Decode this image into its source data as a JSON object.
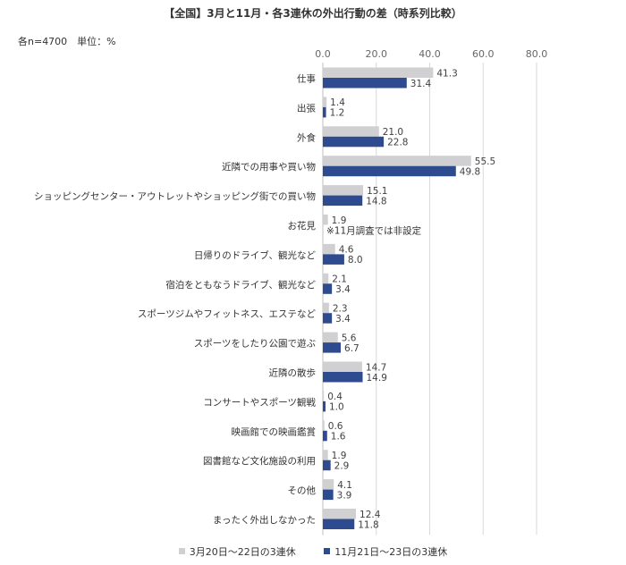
{
  "chart_data": {
    "type": "bar",
    "orientation": "horizontal",
    "title": "【全国】3月と11月・各3連休の外出行動の差（時系列比較）",
    "note": "各n=4700　単位：%",
    "categories": [
      "仕事",
      "出張",
      "外食",
      "近隣での用事や買い物",
      "ショッピングセンター・アウトレットやショッピング街での買い物",
      "お花見",
      "日帰りのドライブ、観光など",
      "宿泊をともなうドライブ、観光など",
      "スポーツジムやフィットネス、エステなど",
      "スポーツをしたり公園で遊ぶ",
      "近隣の散歩",
      "コンサートやスポーツ観戦",
      "映画館での映画鑑賞",
      "図書館など文化施設の利用",
      "その他",
      "まったく外出しなかった"
    ],
    "series": [
      {
        "name": "3月20日～22日の3連休",
        "color": "#d0d0d2",
        "values": [
          41.3,
          1.4,
          21.0,
          55.5,
          15.1,
          1.9,
          4.6,
          2.1,
          2.3,
          5.6,
          14.7,
          0.4,
          0.6,
          1.9,
          4.1,
          12.4
        ]
      },
      {
        "name": "11月21日～23日の3連休",
        "color": "#2f4b8f",
        "values": [
          31.4,
          1.2,
          22.8,
          49.8,
          14.8,
          null,
          8.0,
          3.4,
          3.4,
          6.7,
          14.9,
          1.0,
          1.6,
          2.9,
          3.9,
          11.8
        ]
      }
    ],
    "xlim": [
      0,
      80
    ],
    "ticks": [
      "0.0",
      "20.0",
      "40.0",
      "60.0",
      "80.0"
    ],
    "tick_positions": "top",
    "grid": true,
    "legend_position": "bottom",
    "annotations": [
      {
        "category": "お花見",
        "text": "※11月調査では非設定"
      }
    ]
  }
}
